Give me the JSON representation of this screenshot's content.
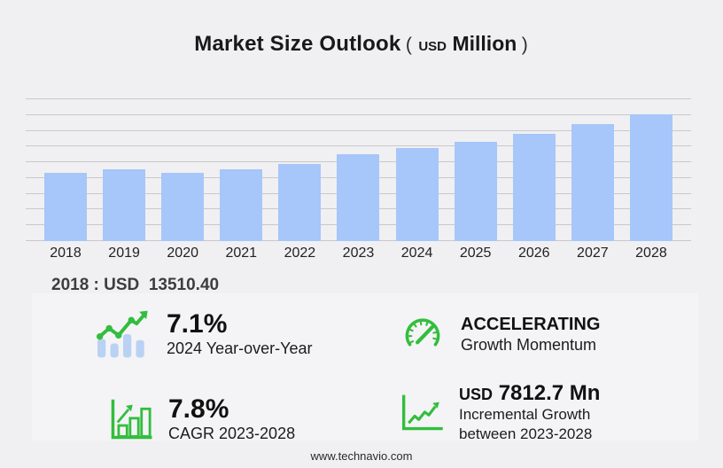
{
  "title": {
    "main": "Market Size Outlook",
    "paren_open": "(",
    "currency": "USD",
    "unit": "Million",
    "paren_close": ")"
  },
  "chart_data": {
    "type": "bar",
    "title": "Market Size Outlook (USD Million)",
    "categories": [
      "2018",
      "2019",
      "2020",
      "2021",
      "2022",
      "2023",
      "2024",
      "2025",
      "2026",
      "2027",
      "2028"
    ],
    "values": [
      13510.4,
      14260,
      13560,
      14260,
      15180,
      17140,
      18360,
      19650,
      21230,
      23040,
      24956
    ],
    "xlabel": "",
    "ylabel": "",
    "ylim": [
      0,
      28000
    ],
    "grid": true,
    "gridline_count": 10,
    "legend": false,
    "bar_color": "#a7c6f9",
    "gridline_color": "#c9c9cb"
  },
  "annotation": {
    "text": "2018 : USD  13510.40"
  },
  "stats": {
    "yoy": {
      "headline": "7.1%",
      "sub": "2024 Year-over-Year"
    },
    "momentum": {
      "headline": "ACCELERATING",
      "sub": "Growth Momentum"
    },
    "cagr": {
      "headline": "7.8%",
      "sub": "CAGR 2023-2028"
    },
    "incremental": {
      "headline_prefix": "USD",
      "headline": "7812.7 Mn",
      "sub": "Incremental Growth between 2023-2028"
    }
  },
  "footer": {
    "website": "www.technavio.com"
  },
  "colors": {
    "background": "#f0f0f2",
    "panel": "#f4f4f6",
    "bar_blue": "#a7c6f9",
    "accent_green": "#33bd3e",
    "title_text": "#191919",
    "muted_text": "#3d3d3d"
  }
}
